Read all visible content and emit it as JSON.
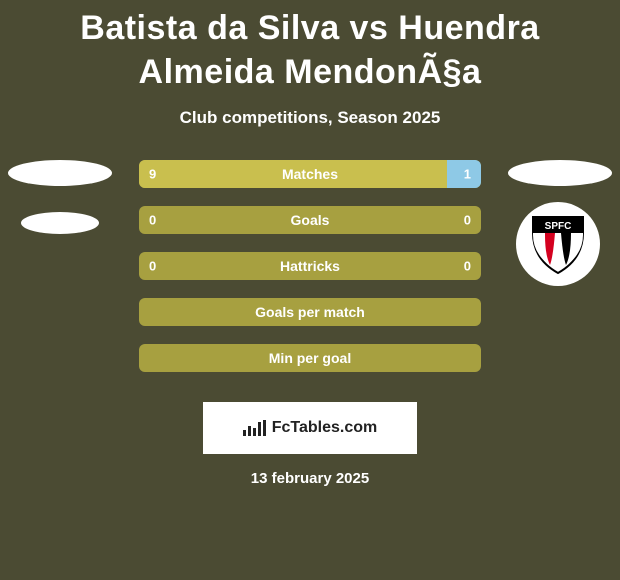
{
  "background_color": "#4b4b33",
  "title": "Batista da Silva vs Huendra Almeida MendonÃ§a",
  "subtitle": "Club competitions, Season 2025",
  "date": "13 february 2025",
  "fctables_label": "FcTables.com",
  "bar_empty_color": "#a7a040",
  "bar_fill_left_color": "#c9bf4e",
  "bar_fill_right_color": "#8ec9e6",
  "text_color": "#ffffff",
  "rows": [
    {
      "label": "Matches",
      "left": "9",
      "right": "1",
      "left_pct": 90,
      "right_pct": 10,
      "show_vals": true
    },
    {
      "label": "Goals",
      "left": "0",
      "right": "0",
      "left_pct": 0,
      "right_pct": 0,
      "show_vals": true
    },
    {
      "label": "Hattricks",
      "left": "0",
      "right": "0",
      "left_pct": 0,
      "right_pct": 0,
      "show_vals": true
    },
    {
      "label": "Goals per match",
      "left": "",
      "right": "",
      "left_pct": 0,
      "right_pct": 0,
      "show_vals": false
    },
    {
      "label": "Min per goal",
      "left": "",
      "right": "",
      "left_pct": 0,
      "right_pct": 0,
      "show_vals": false
    }
  ],
  "badge": {
    "label": "SPFC",
    "top_color": "#000000",
    "mid_color": "#ffffff",
    "stripe1": "#d4001f",
    "stripe2": "#000000"
  }
}
